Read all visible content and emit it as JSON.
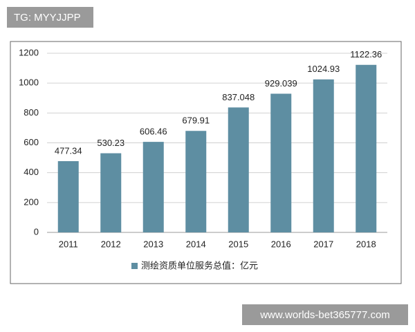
{
  "overlays": {
    "top_left": "TG: MYYJJPP",
    "bottom_right": "www.worlds-bet365777.com"
  },
  "chart_data": {
    "type": "bar",
    "categories": [
      "2011",
      "2012",
      "2013",
      "2014",
      "2015",
      "2016",
      "2017",
      "2018"
    ],
    "series": [
      {
        "name": "测绘资质单位服务总值：亿元",
        "color": "#5e8ea2",
        "values": [
          477.34,
          530.23,
          606.46,
          679.91,
          837.048,
          929.039,
          1024.93,
          1122.36
        ]
      }
    ],
    "ylim": [
      0,
      1200
    ],
    "yticks": [
      0,
      200,
      400,
      600,
      800,
      1000,
      1200
    ],
    "grid": true,
    "legend": "bottom"
  }
}
